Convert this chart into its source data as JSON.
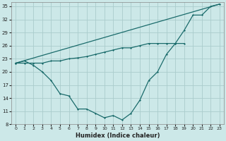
{
  "xlabel": "Humidex (Indice chaleur)",
  "background_color": "#cce8e8",
  "grid_color": "#aacccc",
  "line_color": "#1a6b6b",
  "xlim_min": -0.5,
  "xlim_max": 23.5,
  "ylim_min": 8,
  "ylim_max": 36,
  "yticks": [
    8,
    11,
    14,
    17,
    20,
    23,
    26,
    29,
    32,
    35
  ],
  "xticks": [
    0,
    1,
    2,
    3,
    4,
    5,
    6,
    7,
    8,
    9,
    10,
    11,
    12,
    13,
    14,
    15,
    16,
    17,
    18,
    19,
    20,
    21,
    22,
    23
  ],
  "curve1_x": [
    0,
    1,
    2,
    3,
    4,
    5,
    6,
    7,
    8,
    9,
    10,
    11,
    12,
    13,
    14,
    15,
    16,
    17,
    18,
    19,
    20,
    21,
    22,
    23
  ],
  "curve1_y": [
    22,
    22.5,
    21.5,
    20,
    18,
    15,
    14.5,
    11.5,
    11.5,
    10.5,
    9.5,
    10,
    9,
    10.5,
    13.5,
    18,
    20,
    24,
    26.5,
    29.5,
    33,
    33,
    35,
    35.5
  ],
  "curve2_x": [
    0,
    1,
    2,
    3,
    4,
    5,
    6,
    7,
    8,
    9,
    10,
    11,
    12,
    13,
    14,
    15,
    16,
    17,
    18,
    19
  ],
  "curve2_y": [
    22,
    22,
    22,
    22,
    22.5,
    22.5,
    23,
    23.2,
    23.5,
    24,
    24.5,
    25,
    25.5,
    25.5,
    26,
    26.5,
    26.5,
    26.5,
    26.5,
    26.5
  ],
  "line3_x": [
    0,
    23
  ],
  "line3_y": [
    22,
    35.5
  ]
}
